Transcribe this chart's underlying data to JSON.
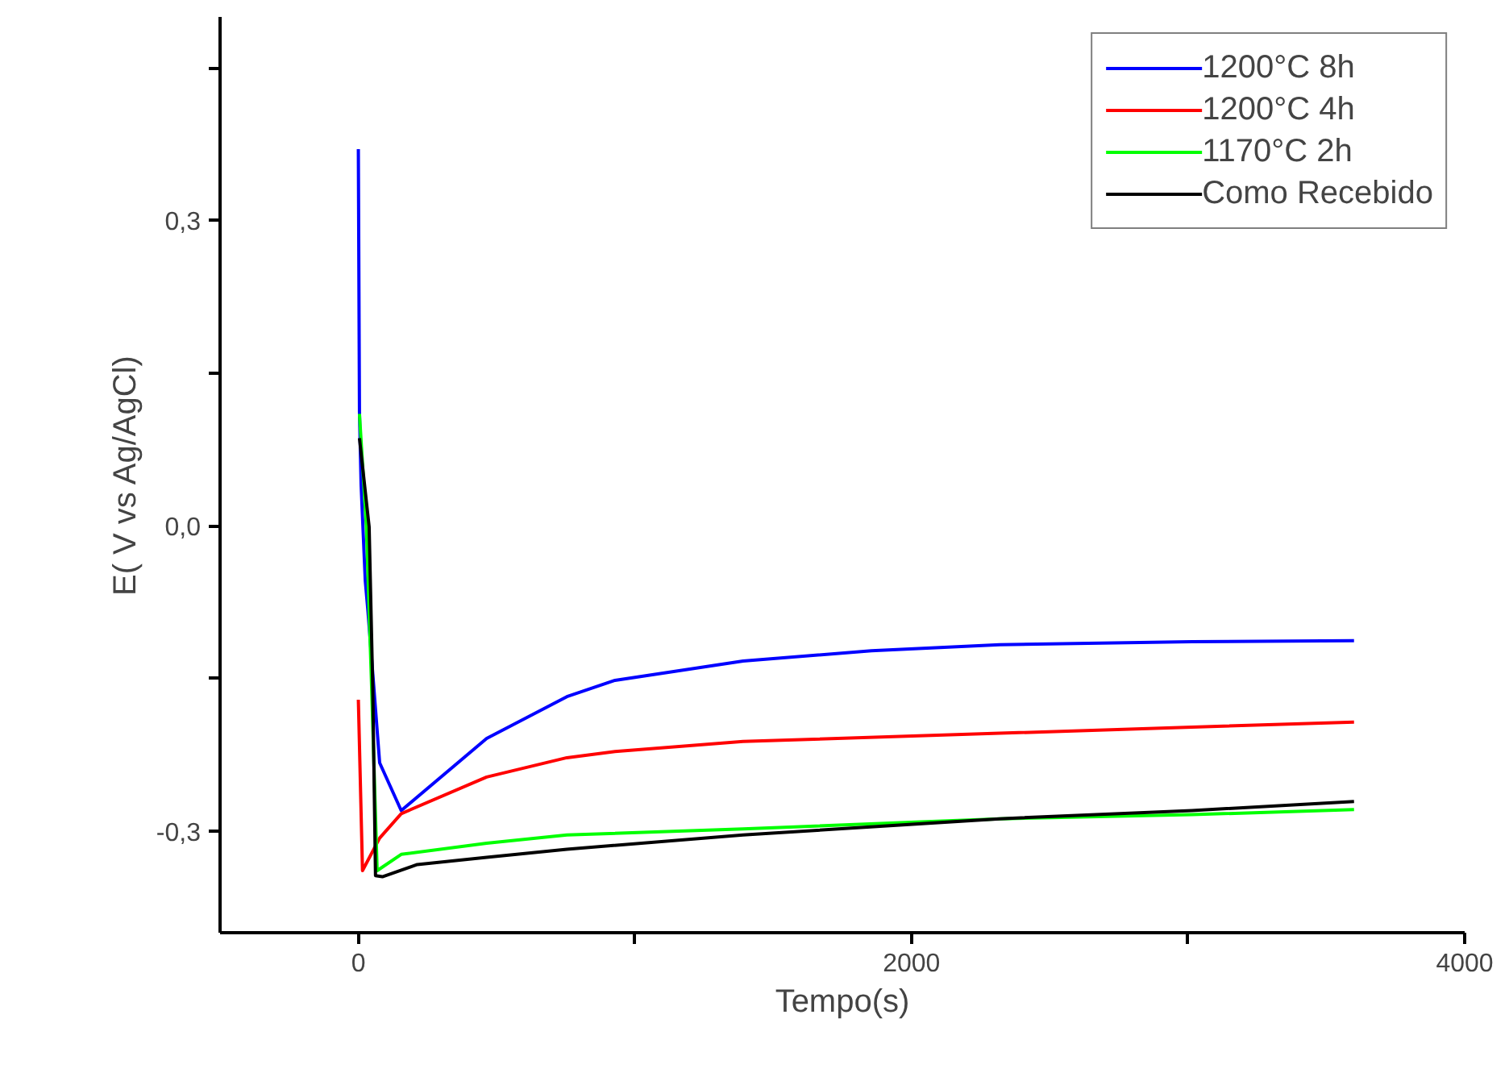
{
  "chart_data": {
    "type": "line",
    "xlabel": "Tempo(s)",
    "ylabel": "E( V vs Ag/AgCl)",
    "xlim": [
      -500,
      4000
    ],
    "ylim": [
      -0.4,
      0.5
    ],
    "xticks": [
      0,
      {
        "value": 1000,
        "label": null
      },
      2000,
      {
        "value": 3000,
        "label": null
      },
      4000
    ],
    "yticks": [
      {
        "value": -0.3,
        "label": "-0,3"
      },
      {
        "value": -0.15,
        "label": null
      },
      {
        "value": 0,
        "label": "0,0"
      },
      {
        "value": 0.15,
        "label": null
      },
      {
        "value": 0.3,
        "label": "0,3"
      },
      {
        "value": 0.45,
        "label": null
      }
    ],
    "grid": false,
    "legend": "top right",
    "marker": "none",
    "line_style": "solid",
    "series": [
      {
        "name": "1200°C 8h",
        "color": "#0000ff",
        "x": [
          0,
          4,
          10,
          25,
          35,
          77,
          155,
          464,
          754,
          928,
          1391,
          1855,
          2319,
          3014,
          3600
        ],
        "values": [
          0.37,
          0.112,
          0.04,
          -0.054,
          -0.085,
          -0.233,
          -0.28,
          -0.209,
          -0.168,
          -0.152,
          -0.133,
          -0.123,
          -0.117,
          -0.114,
          -0.113
        ]
      },
      {
        "name": "1200°C 4h",
        "color": "#ff0000",
        "x": [
          0,
          15,
          77,
          155,
          464,
          754,
          928,
          1391,
          2319,
          3014,
          3600
        ],
        "values": [
          -0.171,
          -0.339,
          -0.307,
          -0.283,
          -0.247,
          -0.228,
          -0.222,
          -0.212,
          -0.204,
          -0.198,
          -0.193
        ]
      },
      {
        "name": "1170°C 2h",
        "color": "#00ff00",
        "x": [
          4,
          29,
          48,
          68,
          155,
          464,
          754,
          1391,
          2319,
          3014,
          3600
        ],
        "values": [
          0.11,
          -0.001,
          -0.159,
          -0.339,
          -0.323,
          -0.312,
          -0.304,
          -0.298,
          -0.288,
          -0.284,
          -0.279
        ]
      },
      {
        "name": "Como Recebido",
        "color": "#000000",
        "x": [
          4,
          39,
          52,
          62,
          87,
          213,
          464,
          754,
          1391,
          2319,
          3014,
          3600
        ],
        "values": [
          0.086,
          -0.001,
          -0.159,
          -0.344,
          -0.345,
          -0.333,
          -0.326,
          -0.318,
          -0.304,
          -0.288,
          -0.28,
          -0.271
        ]
      }
    ]
  }
}
